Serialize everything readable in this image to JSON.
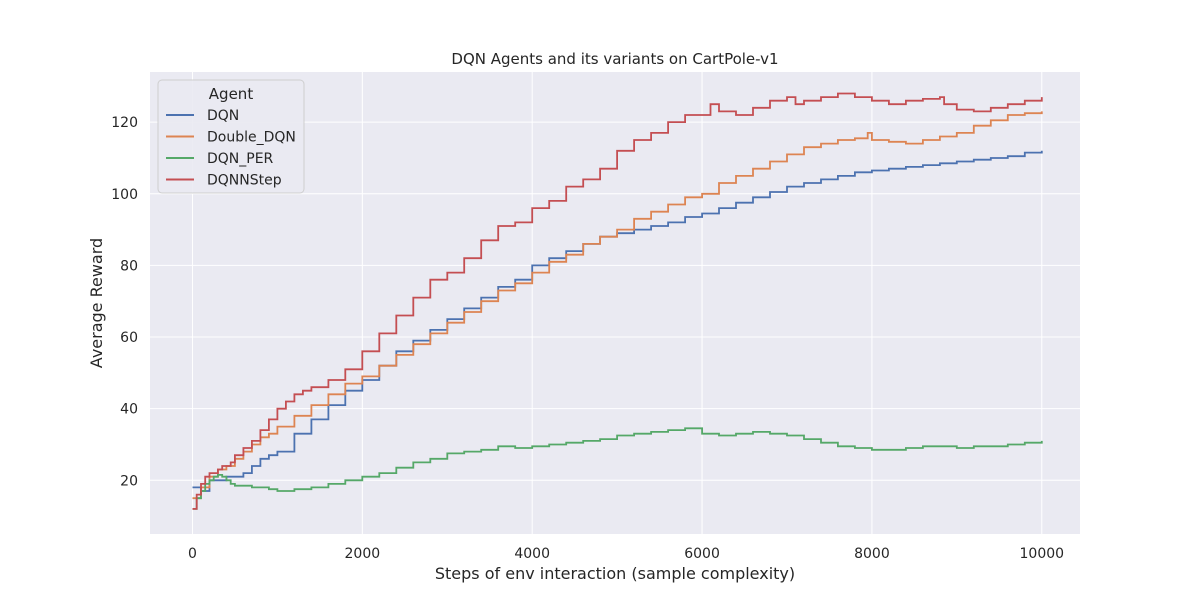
{
  "chart_data": {
    "type": "line",
    "title": "DQN Agents and its variants on CartPole-v1",
    "xlabel": "Steps of env interaction (sample complexity)",
    "ylabel": "Average Reward",
    "xlim": [
      -500,
      10450
    ],
    "ylim": [
      5,
      134
    ],
    "xticks": [
      0,
      2000,
      4000,
      6000,
      8000,
      10000
    ],
    "yticks": [
      20,
      40,
      60,
      80,
      100,
      120
    ],
    "grid": true,
    "legend": {
      "title": "Agent",
      "placement": "top-left"
    },
    "series": [
      {
        "name": "DQN",
        "color": "#4c72b0",
        "x": [
          0,
          100,
          200,
          300,
          400,
          500,
          600,
          700,
          800,
          900,
          1000,
          1200,
          1400,
          1600,
          1800,
          2000,
          2200,
          2400,
          2600,
          2800,
          3000,
          3200,
          3400,
          3600,
          3800,
          4000,
          4200,
          4400,
          4600,
          4800,
          5000,
          5200,
          5400,
          5600,
          5800,
          6000,
          6200,
          6400,
          6600,
          6800,
          7000,
          7200,
          7400,
          7600,
          7800,
          8000,
          8200,
          8400,
          8600,
          8800,
          9000,
          9200,
          9400,
          9600,
          9800,
          10000
        ],
        "values": [
          18,
          17,
          20,
          20,
          21,
          21,
          22,
          24,
          26,
          27,
          28,
          33,
          37,
          41,
          45,
          48,
          52,
          56,
          59,
          62,
          65,
          68,
          71,
          74,
          76,
          80,
          82,
          84,
          86,
          88,
          89,
          90,
          91,
          92,
          93.5,
          94.5,
          96,
          97.5,
          99,
          100.5,
          102,
          103,
          104,
          105,
          106,
          106.5,
          107,
          107.5,
          108,
          108.5,
          109,
          109.5,
          110,
          110.5,
          111.5,
          112
        ]
      },
      {
        "name": "Double_DQN",
        "color": "#dd8452",
        "x": [
          0,
          100,
          200,
          300,
          400,
          500,
          600,
          700,
          800,
          900,
          1000,
          1200,
          1400,
          1600,
          1800,
          2000,
          2200,
          2400,
          2600,
          2800,
          3000,
          3200,
          3400,
          3600,
          3800,
          4000,
          4200,
          4400,
          4600,
          4800,
          5000,
          5200,
          5400,
          5600,
          5800,
          6000,
          6200,
          6400,
          6600,
          6800,
          7000,
          7200,
          7400,
          7600,
          7800,
          7950,
          8000,
          8200,
          8400,
          8600,
          8800,
          9000,
          9200,
          9400,
          9600,
          9800,
          10000
        ],
        "values": [
          15,
          18,
          21,
          23,
          24,
          26,
          28,
          30,
          32,
          33,
          35,
          38,
          41,
          44,
          47,
          49,
          52,
          55,
          58,
          61,
          64,
          67,
          70,
          73,
          75,
          78,
          81,
          83,
          86,
          88,
          90,
          93,
          95,
          97,
          99,
          100,
          103,
          105,
          107,
          109,
          111,
          113,
          114,
          115,
          115.5,
          117,
          115,
          114.5,
          114,
          115,
          116,
          117,
          119,
          120.5,
          122,
          122.5,
          123
        ]
      },
      {
        "name": "DQN_PER",
        "color": "#55a868",
        "x": [
          0,
          50,
          100,
          150,
          200,
          250,
          300,
          350,
          400,
          450,
          500,
          600,
          700,
          800,
          900,
          1000,
          1200,
          1400,
          1600,
          1800,
          2000,
          2200,
          2400,
          2600,
          2800,
          3000,
          3200,
          3400,
          3600,
          3800,
          4000,
          4200,
          4400,
          4600,
          4800,
          5000,
          5200,
          5400,
          5600,
          5800,
          6000,
          6200,
          6400,
          6600,
          6800,
          7000,
          7200,
          7400,
          7600,
          7800,
          8000,
          8200,
          8400,
          8600,
          8800,
          9000,
          9200,
          9400,
          9600,
          9800,
          10000
        ],
        "values": [
          12,
          15,
          17,
          19,
          20,
          21,
          21.5,
          21,
          20,
          19,
          18.5,
          18.5,
          18,
          18,
          17.5,
          17,
          17.5,
          18,
          19,
          20,
          21,
          22,
          23.5,
          25,
          26,
          27.5,
          28,
          28.5,
          29.5,
          29,
          29.5,
          30,
          30.5,
          31,
          31.5,
          32.5,
          33,
          33.5,
          34,
          34.5,
          33,
          32.5,
          33,
          33.5,
          33,
          32.5,
          31.5,
          30.5,
          29.5,
          29,
          28.5,
          28.5,
          29,
          29.5,
          29.5,
          29,
          29.5,
          29.5,
          30,
          30.5,
          31
        ]
      },
      {
        "name": "DQNNStep",
        "color": "#c44e52",
        "x": [
          0,
          50,
          100,
          150,
          200,
          250,
          300,
          350,
          400,
          450,
          500,
          600,
          700,
          800,
          900,
          1000,
          1100,
          1200,
          1300,
          1400,
          1600,
          1800,
          2000,
          2200,
          2400,
          2600,
          2800,
          3000,
          3200,
          3400,
          3600,
          3800,
          4000,
          4200,
          4400,
          4600,
          4800,
          5000,
          5200,
          5400,
          5600,
          5800,
          6000,
          6100,
          6200,
          6400,
          6600,
          6800,
          7000,
          7100,
          7200,
          7400,
          7600,
          7800,
          8000,
          8200,
          8400,
          8600,
          8800,
          8850,
          9000,
          9200,
          9400,
          9600,
          9800,
          10000
        ],
        "values": [
          12,
          16,
          19,
          21,
          22,
          22,
          23,
          24,
          24,
          25,
          27,
          29,
          31,
          34,
          37,
          40,
          42,
          44,
          45,
          46,
          48,
          51,
          56,
          61,
          66,
          71,
          76,
          78,
          82,
          87,
          91,
          92,
          96,
          98,
          102,
          104,
          107,
          112,
          115,
          117,
          120,
          122,
          122,
          125,
          123,
          122,
          124,
          126,
          127,
          125,
          126,
          127,
          128,
          127,
          126,
          125,
          126,
          126.5,
          127,
          125,
          123.5,
          123,
          124,
          125,
          126,
          127
        ]
      }
    ]
  }
}
